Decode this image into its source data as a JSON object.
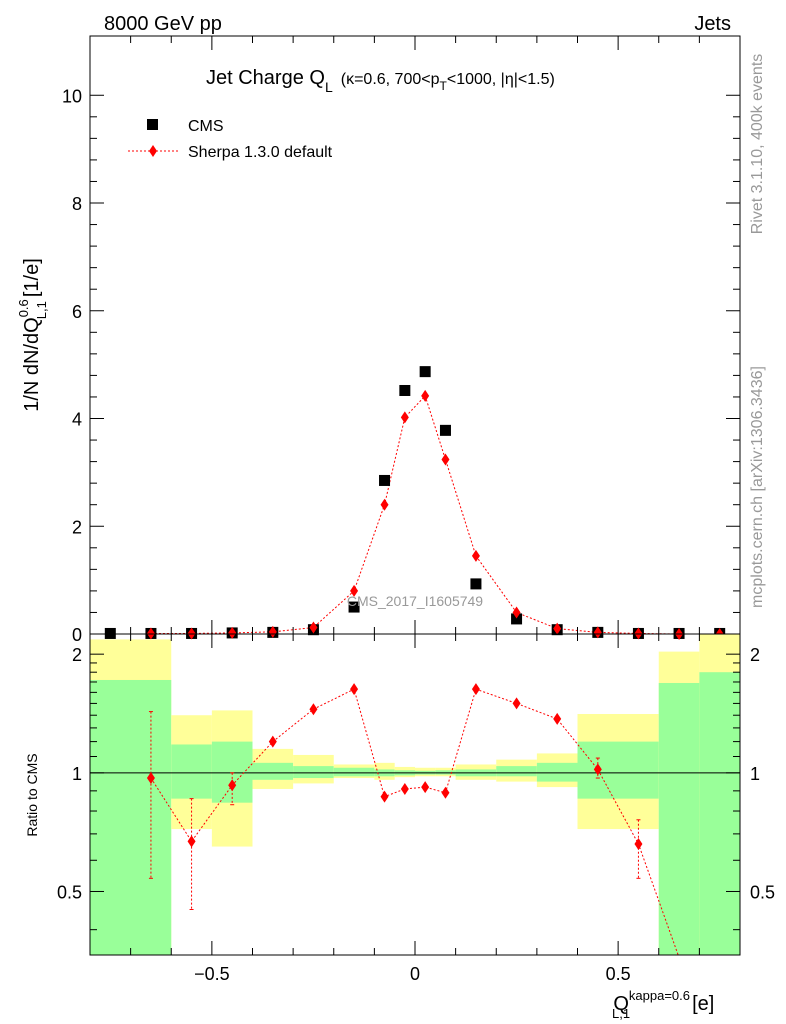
{
  "header": {
    "left": "8000 GeV pp",
    "right": "Jets"
  },
  "side": {
    "rivet": "Rivet 3.1.10,  400k events",
    "mcplots": "mcplots.cern.ch [arXiv:1306.3436]"
  },
  "watermark": "CMS_2017_I1605749",
  "chart_data": [
    {
      "type": "scatter",
      "title": {
        "main": "Jet Charge Q",
        "sub": "L",
        "details": "(κ=0.6, 700<p",
        "pt_sub": "T",
        "details2": "<1000, |η|<1.5)"
      },
      "ylabel": "1/N dN/dQ",
      "ylabel_sup": "0.6",
      "ylabel_sub": "L,1",
      "ylabel_unit": "[1/e]",
      "xlim": [
        -0.8,
        0.8
      ],
      "ylim": [
        0,
        11.1
      ],
      "yticks": [
        0,
        2,
        4,
        6,
        8,
        10
      ],
      "ytick_labels": [
        "0",
        "2",
        "4",
        "6",
        "8",
        "10"
      ],
      "legend": {
        "position": "top-left",
        "entries": [
          "CMS",
          "Sherpa 1.3.0 default"
        ]
      },
      "series": [
        {
          "name": "CMS",
          "x": [
            -0.75,
            -0.65,
            -0.55,
            -0.45,
            -0.35,
            -0.25,
            -0.15,
            -0.075,
            -0.025,
            0.025,
            0.075,
            0.15,
            0.25,
            0.35,
            0.45,
            0.55,
            0.65,
            0.75
          ],
          "y": [
            0.01,
            0.01,
            0.01,
            0.02,
            0.03,
            0.08,
            0.5,
            2.85,
            4.52,
            4.87,
            3.78,
            0.93,
            0.28,
            0.08,
            0.03,
            0.01,
            0.01,
            0.01
          ]
        },
        {
          "name": "Sherpa 1.3.0 default",
          "x": [
            -0.65,
            -0.55,
            -0.45,
            -0.35,
            -0.25,
            -0.15,
            -0.075,
            -0.025,
            0.025,
            0.075,
            0.15,
            0.25,
            0.35,
            0.45,
            0.55,
            0.65,
            0.75
          ],
          "y": [
            0.01,
            0.01,
            0.02,
            0.04,
            0.12,
            0.8,
            2.4,
            4.02,
            4.42,
            3.24,
            1.45,
            0.4,
            0.1,
            0.03,
            0.01,
            0.0,
            0.0
          ]
        }
      ]
    },
    {
      "type": "scatter",
      "ylabel": "Ratio to CMS",
      "xlabel": "Q",
      "xlabel_sup": "kappa=0.6",
      "xlabel_sub": "L,1",
      "xlabel_unit": "[e]",
      "xlim": [
        -0.8,
        0.8
      ],
      "ylim": [
        0.345,
        2.25
      ],
      "log_scale_y": true,
      "yticks": [
        0.5,
        1,
        2
      ],
      "ytick_labels": [
        "0.5",
        "1",
        "2"
      ],
      "xticks": [
        -0.5,
        0,
        0.5
      ],
      "xtick_labels": [
        "−0.5",
        "0",
        "0.5"
      ],
      "bands": [
        {
          "x0": -0.8,
          "x1": -0.6,
          "yellow": [
            0.345,
            2.18
          ],
          "green": [
            0.345,
            1.72
          ]
        },
        {
          "x0": -0.6,
          "x1": -0.5,
          "yellow": [
            0.72,
            1.4
          ],
          "green": [
            0.86,
            1.18
          ]
        },
        {
          "x0": -0.5,
          "x1": -0.4,
          "yellow": [
            0.65,
            1.44
          ],
          "green": [
            0.84,
            1.2
          ]
        },
        {
          "x0": -0.4,
          "x1": -0.3,
          "yellow": [
            0.91,
            1.15
          ],
          "green": [
            0.96,
            1.06
          ]
        },
        {
          "x0": -0.3,
          "x1": -0.2,
          "yellow": [
            0.94,
            1.11
          ],
          "green": [
            0.97,
            1.04
          ]
        },
        {
          "x0": -0.2,
          "x1": -0.1,
          "yellow": [
            0.97,
            1.05
          ],
          "green": [
            0.98,
            1.03
          ]
        },
        {
          "x0": -0.1,
          "x1": -0.05,
          "yellow": [
            0.96,
            1.06
          ],
          "green": [
            0.98,
            1.02
          ]
        },
        {
          "x0": -0.05,
          "x1": 0.0,
          "yellow": [
            0.975,
            1.035
          ],
          "green": [
            0.985,
            1.015
          ]
        },
        {
          "x0": 0.0,
          "x1": 0.05,
          "yellow": [
            0.98,
            1.03
          ],
          "green": [
            0.99,
            1.012
          ]
        },
        {
          "x0": 0.05,
          "x1": 0.1,
          "yellow": [
            0.98,
            1.03
          ],
          "green": [
            0.99,
            1.015
          ]
        },
        {
          "x0": 0.1,
          "x1": 0.2,
          "yellow": [
            0.96,
            1.05
          ],
          "green": [
            0.98,
            1.02
          ]
        },
        {
          "x0": 0.2,
          "x1": 0.3,
          "yellow": [
            0.95,
            1.08
          ],
          "green": [
            0.98,
            1.04
          ]
        },
        {
          "x0": 0.3,
          "x1": 0.4,
          "yellow": [
            0.92,
            1.12
          ],
          "green": [
            0.95,
            1.06
          ]
        },
        {
          "x0": 0.4,
          "x1": 0.6,
          "yellow": [
            0.72,
            1.41
          ],
          "green": [
            0.86,
            1.2
          ]
        },
        {
          "x0": 0.6,
          "x1": 0.7,
          "yellow": [
            0.345,
            2.03
          ],
          "green": [
            0.345,
            1.69
          ]
        },
        {
          "x0": 0.7,
          "x1": 0.8,
          "yellow": [
            0.345,
            2.25
          ],
          "green": [
            0.345,
            1.8
          ]
        }
      ],
      "series": [
        {
          "name": "Sherpa 1.3.0 default",
          "x": [
            -0.65,
            -0.55,
            -0.45,
            -0.35,
            -0.25,
            -0.15,
            -0.075,
            -0.025,
            0.025,
            0.075,
            0.15,
            0.25,
            0.35,
            0.45,
            0.55,
            0.65
          ],
          "y": [
            0.97,
            0.67,
            0.93,
            1.2,
            1.45,
            1.63,
            0.87,
            0.91,
            0.92,
            0.89,
            1.63,
            1.5,
            1.37,
            1.02,
            0.66,
            0.34
          ],
          "err_low": [
            0.54,
            0.45,
            0.83,
            null,
            null,
            null,
            null,
            null,
            null,
            null,
            null,
            null,
            null,
            0.97,
            0.54,
            null
          ],
          "err_high": [
            1.43,
            0.86,
            1.0,
            null,
            null,
            null,
            null,
            null,
            null,
            null,
            null,
            null,
            null,
            1.09,
            0.76,
            null
          ]
        }
      ]
    }
  ],
  "colors": {
    "cms": "#000000",
    "mc": "#ff0000",
    "yellow_band": "#ffff99",
    "green_band": "#99ff99"
  }
}
